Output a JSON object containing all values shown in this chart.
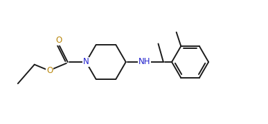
{
  "bg_color": "#ffffff",
  "line_color": "#1a1a1a",
  "atom_color_N": "#2020cc",
  "atom_color_O": "#b8860b",
  "line_width": 1.4,
  "font_size": 8.5,
  "fig_width": 3.87,
  "fig_height": 1.8,
  "dpi": 100,
  "xlim": [
    0,
    10.5
  ],
  "ylim": [
    0,
    4.8
  ]
}
